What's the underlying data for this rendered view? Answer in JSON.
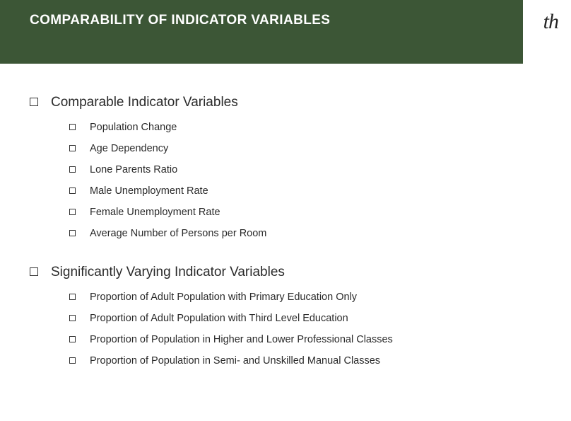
{
  "header": {
    "title": "COMPARABILITY OF INDICATOR VARIABLES",
    "bg_color": "#3c5636",
    "title_color": "#ffffff",
    "title_fontsize": 19
  },
  "logo": {
    "text": "th"
  },
  "sections": [
    {
      "title": "Comparable Indicator Variables",
      "items": [
        "Population Change",
        "Age Dependency",
        "Lone Parents Ratio",
        "Male Unemployment Rate",
        "Female Unemployment Rate",
        "Average Number of Persons per Room"
      ]
    },
    {
      "title": "Significantly Varying Indicator Variables",
      "items": [
        "Proportion of Adult Population with Primary Education Only",
        "Proportion of Adult Population with Third Level Education",
        "Proportion of Population in Higher and Lower Professional Classes",
        "Proportion of Population in Semi- and Unskilled Manual Classes"
      ]
    }
  ],
  "style": {
    "body_bg": "#ffffff",
    "text_color": "#2a2a2a",
    "section_title_fontsize": 19,
    "subitem_fontsize": 14.5,
    "bullet_border_color": "#333333"
  }
}
